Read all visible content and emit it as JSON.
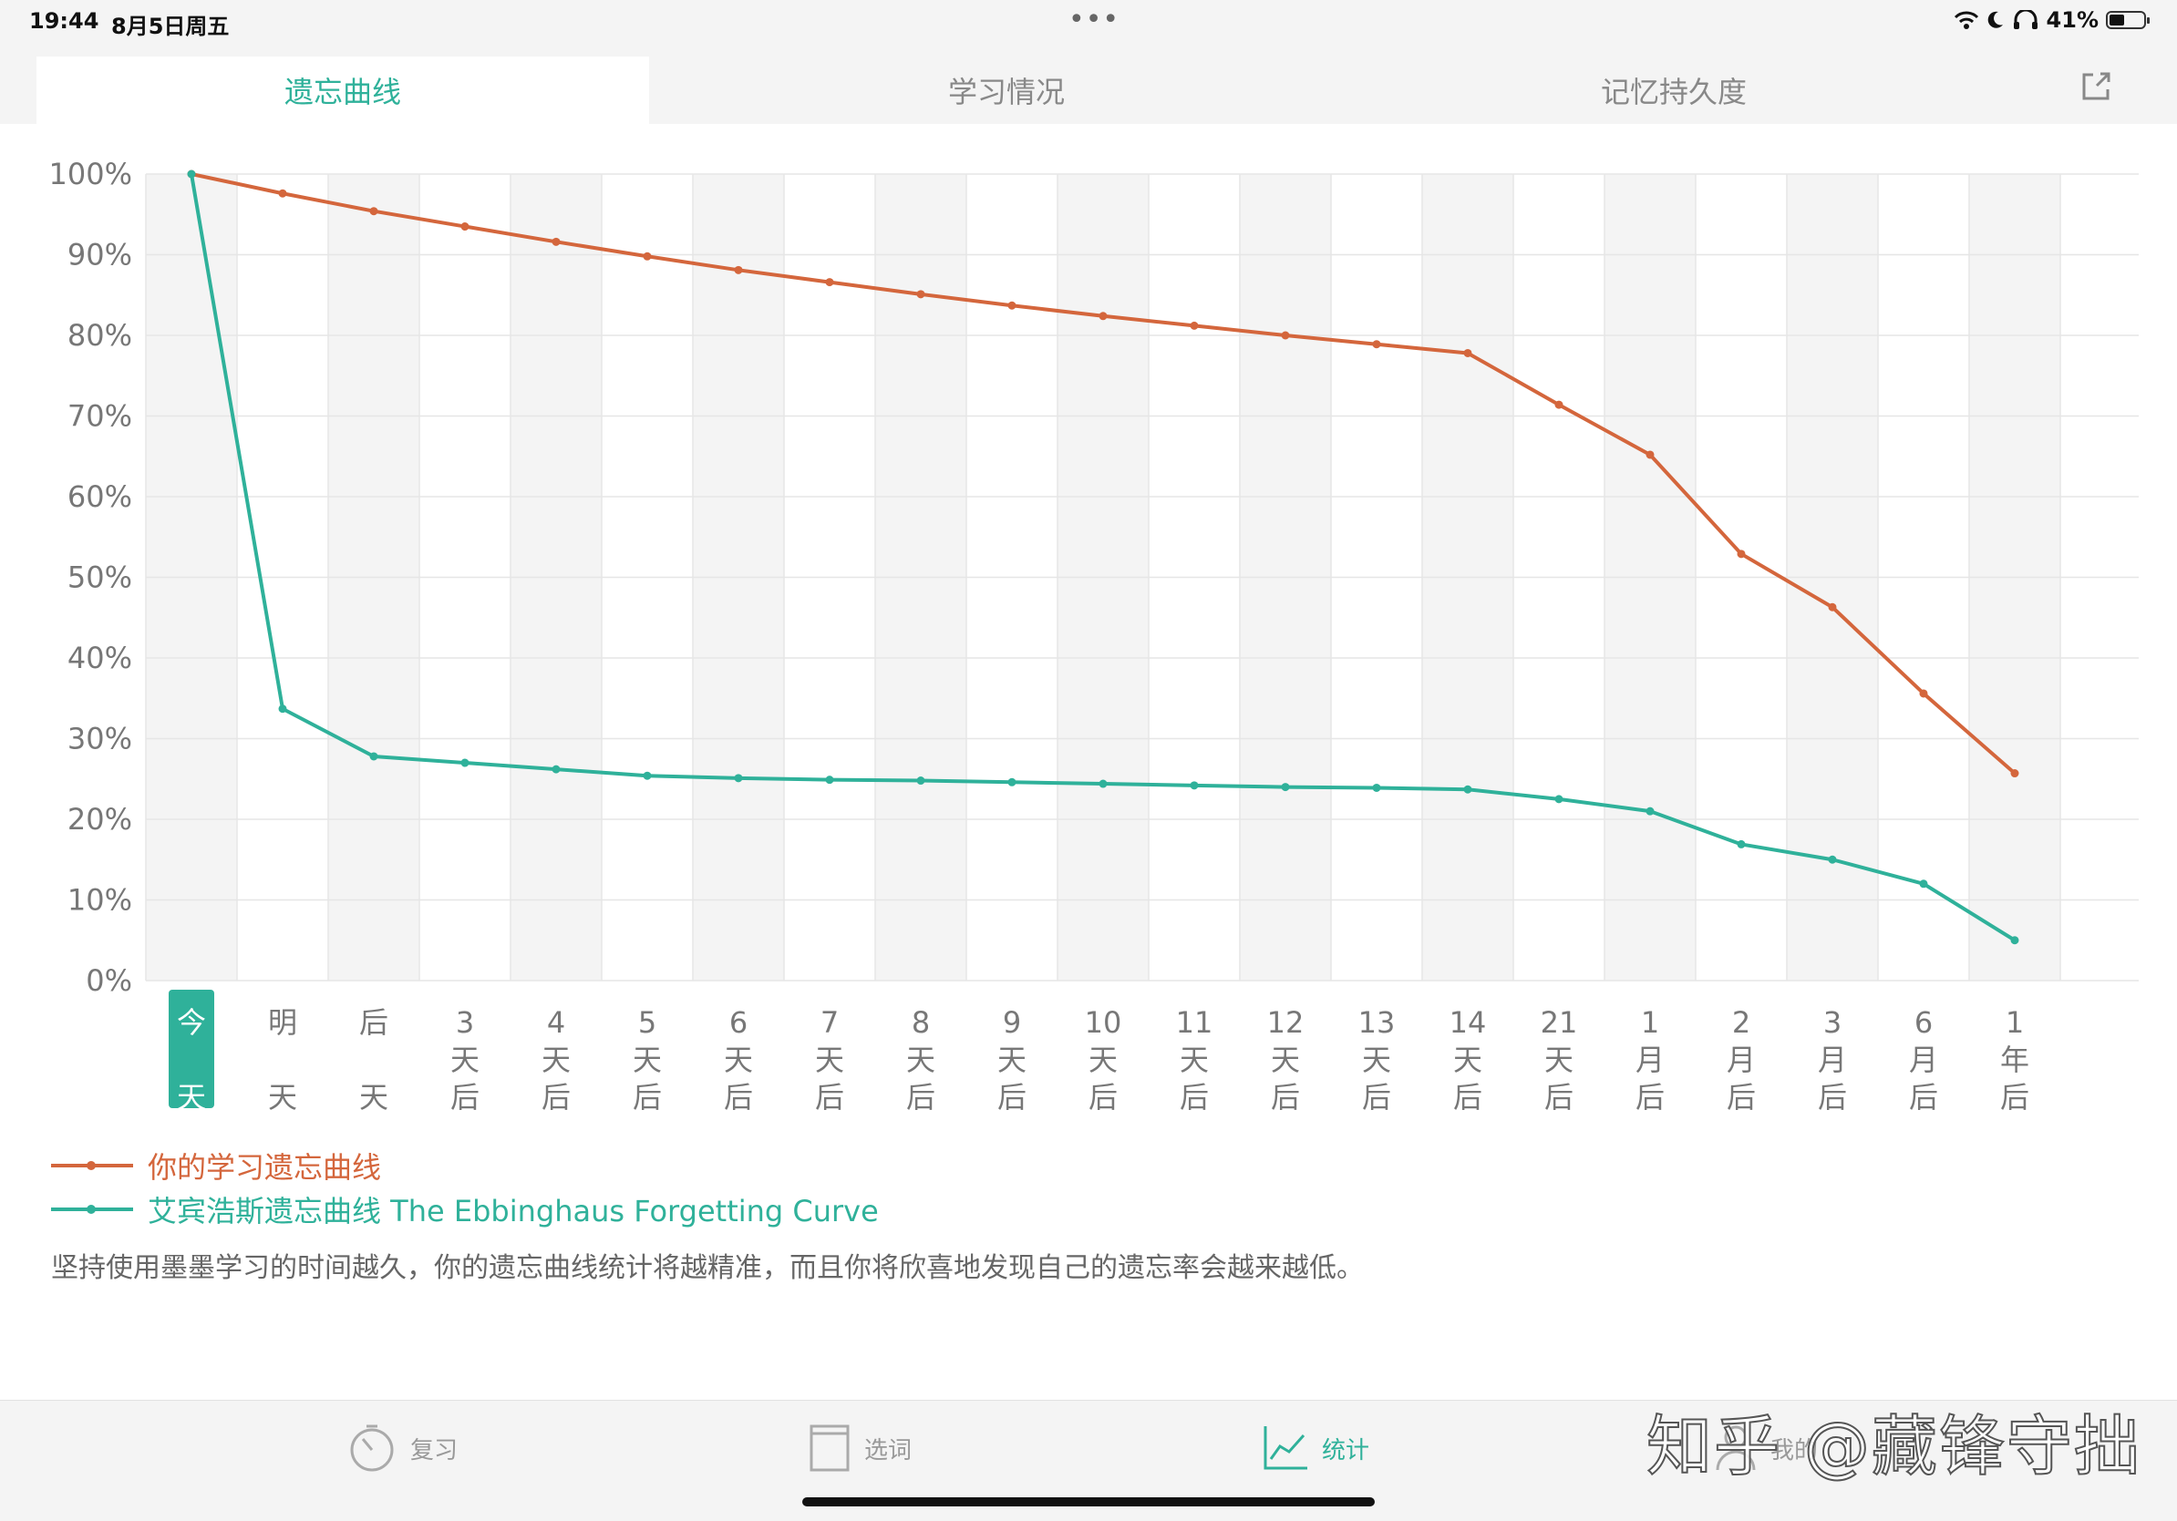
{
  "status_bar": {
    "time": "19:44",
    "date": "8月5日周五",
    "dots": "•••",
    "battery": "41%"
  },
  "tabs": [
    {
      "label": "遗忘曲线",
      "active": true
    },
    {
      "label": "学习情况",
      "active": false
    },
    {
      "label": "记忆持久度",
      "active": false
    }
  ],
  "chart_data": {
    "type": "line",
    "y_ticks": [
      "100%",
      "90%",
      "80%",
      "70%",
      "60%",
      "50%",
      "40%",
      "30%",
      "20%",
      "10%",
      "0%"
    ],
    "ylim": [
      0,
      100
    ],
    "grid": true,
    "categories": [
      [
        "今",
        "天"
      ],
      [
        "明",
        "天"
      ],
      [
        "后",
        "天"
      ],
      [
        "3",
        "天",
        "后"
      ],
      [
        "4",
        "天",
        "后"
      ],
      [
        "5",
        "天",
        "后"
      ],
      [
        "6",
        "天",
        "后"
      ],
      [
        "7",
        "天",
        "后"
      ],
      [
        "8",
        "天",
        "后"
      ],
      [
        "9",
        "天",
        "后"
      ],
      [
        "10",
        "天",
        "后"
      ],
      [
        "11",
        "天",
        "后"
      ],
      [
        "12",
        "天",
        "后"
      ],
      [
        "13",
        "天",
        "后"
      ],
      [
        "14",
        "天",
        "后"
      ],
      [
        "21",
        "天",
        "后"
      ],
      [
        "1",
        "月",
        "后"
      ],
      [
        "2",
        "月",
        "后"
      ],
      [
        "3",
        "月",
        "后"
      ],
      [
        "6",
        "月",
        "后"
      ],
      [
        "1",
        "年",
        "后"
      ]
    ],
    "highlight_category": 0,
    "series": [
      {
        "name": "你的学习遗忘曲线",
        "color": "#d4663c",
        "values": [
          100,
          97.6,
          95.4,
          93.5,
          91.6,
          89.8,
          88.1,
          86.6,
          85.1,
          83.7,
          82.4,
          81.2,
          80.0,
          78.9,
          77.8,
          71.4,
          65.2,
          52.9,
          46.3,
          35.6,
          25.7
        ]
      },
      {
        "name": "艾宾浩斯遗忘曲线 The Ebbinghaus Forgetting Curve",
        "color": "#2fb19a",
        "values": [
          100,
          33.7,
          27.8,
          27.0,
          26.2,
          25.4,
          25.1,
          24.9,
          24.8,
          24.6,
          24.4,
          24.2,
          24.0,
          23.9,
          23.7,
          22.5,
          21.0,
          16.9,
          15.0,
          12.0,
          5.0
        ]
      }
    ]
  },
  "legend": [
    {
      "label": "你的学习遗忘曲线",
      "color": "#d4663c"
    },
    {
      "label": "艾宾浩斯遗忘曲线 The Ebbinghaus Forgetting Curve",
      "color": "#2fb19a"
    }
  ],
  "note": "坚持使用墨墨学习的时间越久，你的遗忘曲线统计将越精准，而且你将欣喜地发现自己的遗忘率会越来越低。",
  "tabbar": {
    "items": [
      {
        "label": "复习",
        "icon": "timer-icon"
      },
      {
        "label": "选词",
        "icon": "book-icon"
      },
      {
        "label": "统计",
        "icon": "chart-icon"
      },
      {
        "label": "我的",
        "icon": "person-icon"
      }
    ]
  },
  "watermark": "知乎 @藏锋守拙",
  "colors": {
    "accent": "#2fb19a",
    "orange": "#d4663c"
  }
}
